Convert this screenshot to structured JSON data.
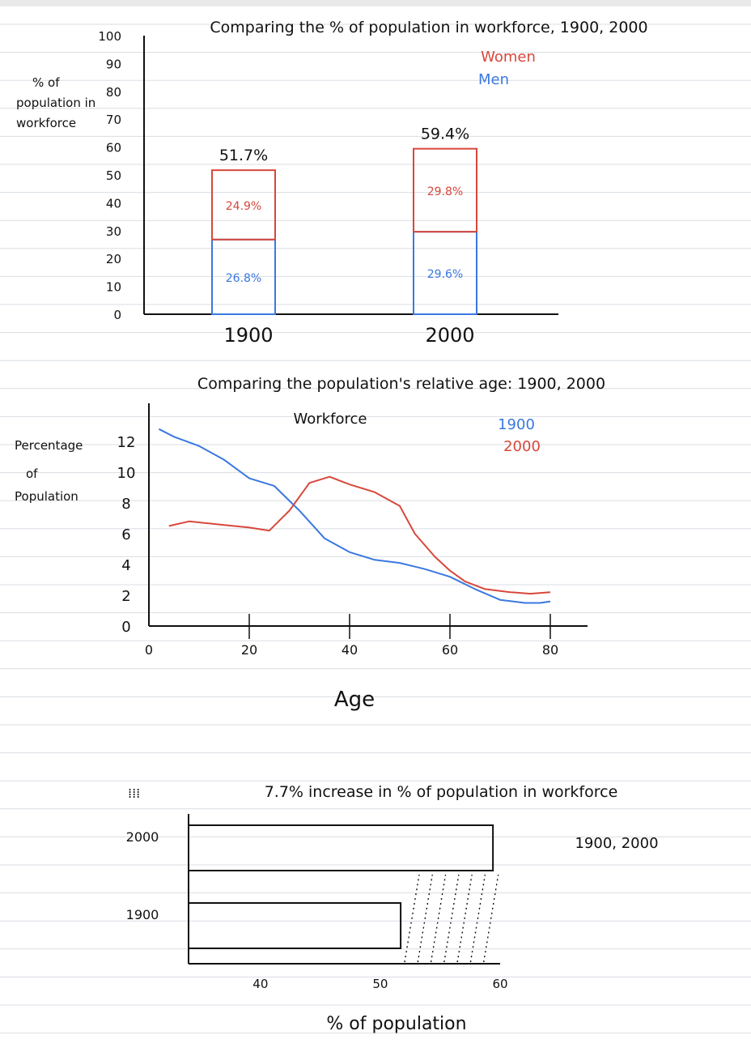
{
  "colors": {
    "women": "#d8473b",
    "men": "#3a78e0",
    "ink": "#111111",
    "rule": "#d9dde3"
  },
  "chart_data": [
    {
      "type": "bar",
      "stacked": true,
      "title": "Comparing the % of population in workforce, 1900, 2000",
      "ylabel": "% of population in workforce",
      "ylim": [
        0,
        100
      ],
      "yticks": [
        "0",
        "10",
        "20",
        "30",
        "40",
        "50",
        "60",
        "70",
        "80",
        "90",
        "100"
      ],
      "categories": [
        "1900",
        "2000"
      ],
      "series": [
        {
          "name": "Men",
          "values": [
            26.8,
            29.6
          ],
          "labels": [
            "26.8%",
            "29.6%"
          ]
        },
        {
          "name": "Women",
          "values": [
            24.9,
            29.8
          ],
          "labels": [
            "24.9%",
            "29.8%"
          ]
        }
      ],
      "totals": [
        51.7,
        59.4
      ],
      "total_labels": [
        "51.7%",
        "59.4%"
      ],
      "legend": [
        "Women",
        "Men"
      ],
      "legend_position": "top-right",
      "grid": false
    },
    {
      "type": "line",
      "title": "Comparing the population's relative age: 1900, 2000",
      "subtitle": "Workforce",
      "xlabel": "Age",
      "ylabel": "Percentage of Population",
      "xlim": [
        0,
        80
      ],
      "ylim": [
        0,
        13
      ],
      "xticks": [
        "0",
        "20",
        "40",
        "60",
        "80"
      ],
      "yticks": [
        "0",
        "2",
        "4",
        "6",
        "8",
        "10",
        "12"
      ],
      "series": [
        {
          "name": "1900",
          "points": [
            [
              2,
              12.8
            ],
            [
              5,
              12.3
            ],
            [
              10,
              11.7
            ],
            [
              15,
              10.8
            ],
            [
              20,
              9.6
            ],
            [
              25,
              9.1
            ],
            [
              30,
              7.5
            ],
            [
              35,
              5.7
            ],
            [
              40,
              4.8
            ],
            [
              45,
              4.3
            ],
            [
              50,
              4.1
            ],
            [
              55,
              3.7
            ],
            [
              60,
              3.2
            ],
            [
              65,
              2.4
            ],
            [
              70,
              1.7
            ],
            [
              75,
              1.5
            ],
            [
              78,
              1.5
            ],
            [
              80,
              1.6
            ]
          ]
        },
        {
          "name": "2000",
          "points": [
            [
              4,
              6.5
            ],
            [
              8,
              6.8
            ],
            [
              14,
              6.6
            ],
            [
              20,
              6.4
            ],
            [
              24,
              6.2
            ],
            [
              28,
              7.5
            ],
            [
              32,
              9.3
            ],
            [
              36,
              9.7
            ],
            [
              40,
              9.2
            ],
            [
              45,
              8.7
            ],
            [
              50,
              7.8
            ],
            [
              53,
              6.0
            ],
            [
              57,
              4.5
            ],
            [
              60,
              3.6
            ],
            [
              63,
              2.9
            ],
            [
              67,
              2.4
            ],
            [
              72,
              2.2
            ],
            [
              76,
              2.1
            ],
            [
              80,
              2.2
            ]
          ]
        }
      ],
      "legend": [
        "1900",
        "2000"
      ],
      "legend_position": "top-right",
      "grid": false
    },
    {
      "type": "bar",
      "orientation": "horizontal",
      "title": "7.7% increase in % of population in workforce",
      "subtitle": "1900, 2000",
      "xlabel": "% of population",
      "xlim": [
        34,
        60
      ],
      "xticks": [
        "40",
        "50",
        "60"
      ],
      "categories": [
        "2000",
        "1900"
      ],
      "values": [
        59.4,
        51.7
      ],
      "increase_label": "7.7% increase",
      "grid": false
    }
  ]
}
